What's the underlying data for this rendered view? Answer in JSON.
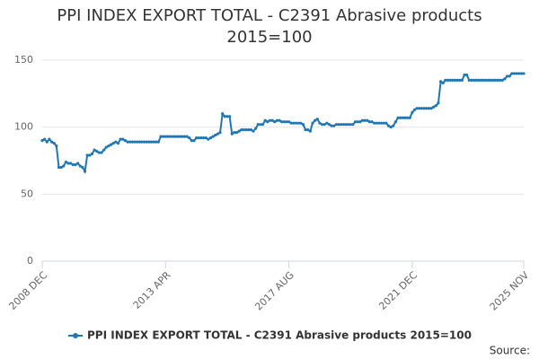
{
  "chart_data": {
    "type": "line",
    "title": "PPI INDEX EXPORT TOTAL - C2391 Abrasive products 2015=100",
    "source": "Source:",
    "categories": [
      "2008 DEC",
      null,
      null,
      null,
      null,
      null,
      null,
      null,
      null,
      null,
      null,
      null,
      null,
      null,
      null,
      null,
      null,
      null,
      null,
      null,
      null,
      null,
      null,
      null,
      null,
      null,
      null,
      null,
      null,
      null,
      null,
      null,
      null,
      null,
      null,
      null,
      null,
      null,
      null,
      null,
      null,
      null,
      null,
      null,
      null,
      null,
      null,
      null,
      null,
      null,
      null,
      null,
      "2013 APR",
      null,
      null,
      null,
      null,
      null,
      null,
      null,
      null,
      null,
      null,
      null,
      null,
      null,
      null,
      null,
      null,
      null,
      null,
      null,
      null,
      null,
      null,
      null,
      null,
      null,
      null,
      null,
      null,
      null,
      null,
      null,
      null,
      null,
      null,
      null,
      null,
      null,
      null,
      null,
      null,
      null,
      null,
      null,
      null,
      null,
      null,
      null,
      null,
      null,
      null,
      null,
      "2017 AUG",
      null,
      null,
      null,
      null,
      null,
      null,
      null,
      null,
      null,
      null,
      null,
      null,
      null,
      null,
      null,
      null,
      null,
      null,
      null,
      null,
      null,
      null,
      null,
      null,
      null,
      null,
      null,
      null,
      null,
      null,
      null,
      null,
      null,
      null,
      null,
      null,
      null,
      null,
      null,
      null,
      null,
      null,
      null,
      null,
      null,
      null,
      null,
      null,
      null,
      null,
      null,
      "2021 DEC",
      null,
      null,
      null,
      null,
      null,
      null,
      null,
      null,
      null,
      null,
      null,
      null,
      null,
      null,
      null,
      null,
      null,
      null,
      null,
      null,
      null,
      null,
      null,
      null,
      null,
      null,
      null,
      null,
      null,
      null,
      null,
      null,
      null,
      null,
      null,
      null,
      null,
      null,
      null,
      null,
      null,
      null,
      null,
      null,
      null,
      null,
      "2025 NOV"
    ],
    "series": [
      {
        "name": "PPI INDEX EXPORT TOTAL - C2391 Abrasive products 2015=100",
        "color": "#1f77b4",
        "values": [
          90,
          91,
          89,
          91,
          89,
          88,
          86,
          70,
          70,
          71,
          74,
          73,
          73,
          72,
          72,
          73,
          71,
          70,
          67,
          79,
          79,
          80,
          83,
          82,
          81,
          81,
          83,
          85,
          86,
          87,
          88,
          89,
          88,
          91,
          91,
          90,
          89,
          89,
          89,
          89,
          89,
          89,
          89,
          89,
          89,
          89,
          89,
          89,
          89,
          89,
          93,
          93,
          93,
          93,
          93,
          93,
          93,
          93,
          93,
          93,
          93,
          93,
          92,
          90,
          90,
          92,
          92,
          92,
          92,
          92,
          91,
          92,
          93,
          94,
          95,
          96,
          110,
          108,
          108,
          108,
          95,
          96,
          96,
          97,
          98,
          98,
          98,
          98,
          98,
          97,
          99,
          102,
          102,
          102,
          105,
          104,
          105,
          105,
          104,
          105,
          105,
          104,
          104,
          104,
          104,
          103,
          103,
          103,
          103,
          103,
          102,
          98,
          98,
          97,
          103,
          105,
          106,
          103,
          102,
          102,
          103,
          102,
          101,
          101,
          102,
          102,
          102,
          102,
          102,
          102,
          102,
          102,
          104,
          104,
          104,
          105,
          105,
          105,
          104,
          104,
          103,
          103,
          103,
          103,
          103,
          103,
          101,
          100,
          101,
          104,
          107,
          107,
          107,
          107,
          107,
          107,
          111,
          113,
          114,
          114,
          114,
          114,
          114,
          114,
          114,
          115,
          116,
          118,
          134,
          133,
          135,
          135,
          135,
          135,
          135,
          135,
          135,
          135,
          139,
          139,
          135,
          135,
          135,
          135,
          135,
          135,
          135,
          135,
          135,
          135,
          135,
          135,
          135,
          135,
          135,
          136,
          138,
          138,
          140,
          140,
          140,
          140,
          140,
          140
        ]
      }
    ],
    "ylim": [
      0,
      150
    ],
    "yticks": [
      0,
      50,
      100,
      150
    ],
    "grid": true
  }
}
